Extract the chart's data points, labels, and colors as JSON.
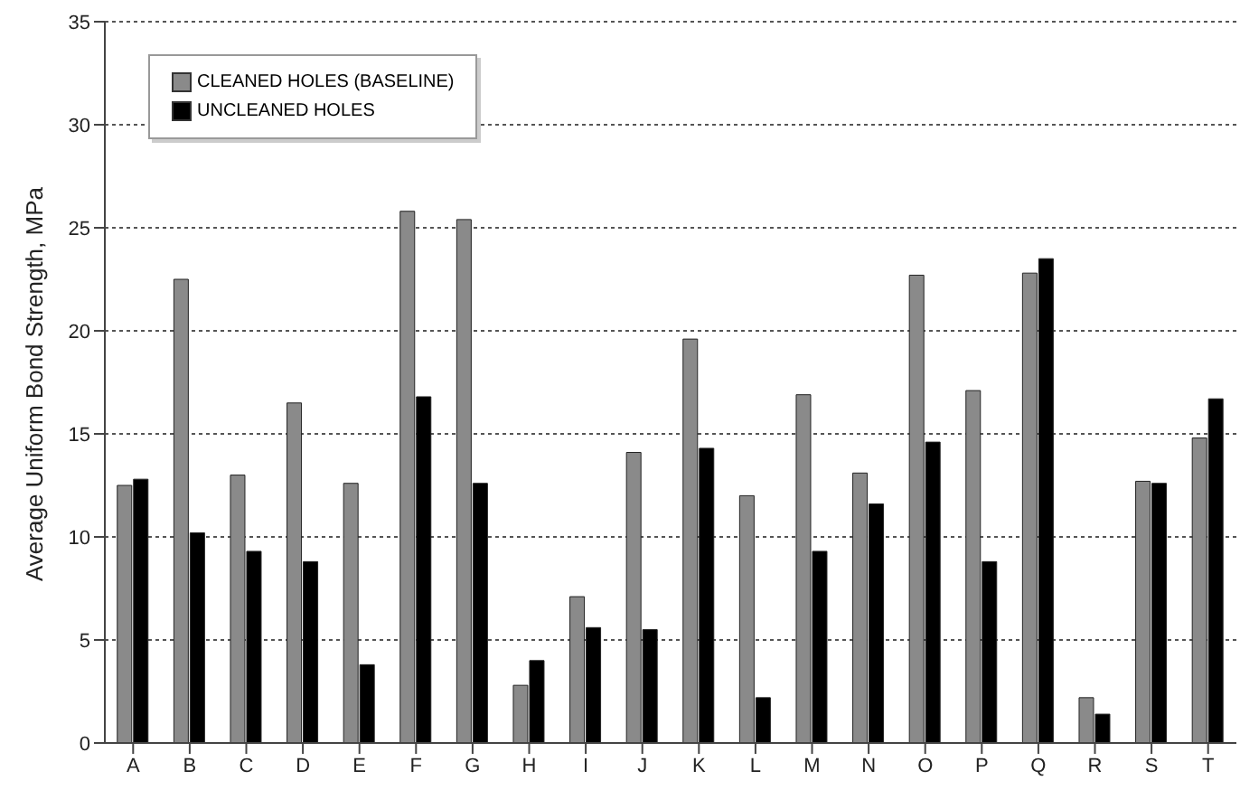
{
  "chart_data": {
    "type": "bar",
    "ylabel": "Average Uniform Bond Strength, MPa",
    "categories": [
      "A",
      "B",
      "C",
      "D",
      "E",
      "F",
      "G",
      "H",
      "I",
      "J",
      "K",
      "L",
      "M",
      "N",
      "O",
      "P",
      "Q",
      "R",
      "S",
      "T"
    ],
    "series": [
      {
        "name": "CLEANED HOLES (BASELINE)",
        "color": "#8a8a8a",
        "values": [
          12.5,
          22.5,
          13.0,
          16.5,
          12.6,
          25.8,
          25.4,
          2.8,
          7.1,
          14.1,
          19.6,
          12.0,
          16.9,
          13.1,
          22.7,
          17.1,
          22.8,
          2.2,
          12.7,
          14.8
        ]
      },
      {
        "name": "UNCLEANED HOLES",
        "color": "#000000",
        "values": [
          12.8,
          10.2,
          9.3,
          8.8,
          3.8,
          16.8,
          12.6,
          4.0,
          5.6,
          5.5,
          14.3,
          2.2,
          9.3,
          11.6,
          14.6,
          8.8,
          23.5,
          1.4,
          12.6,
          16.7
        ]
      }
    ],
    "ylim": [
      0,
      35
    ],
    "yticks": [
      0,
      5,
      10,
      15,
      20,
      25,
      30,
      35
    ],
    "grid": "y",
    "legend": "top left"
  }
}
